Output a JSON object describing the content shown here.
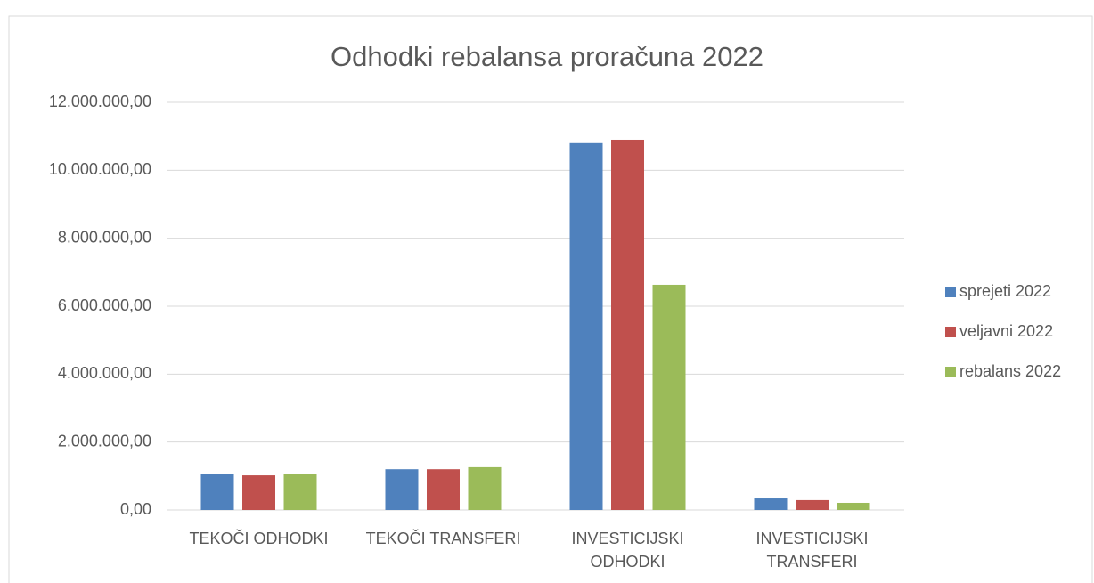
{
  "chart_data": {
    "type": "bar",
    "title": "Odhodki rebalansa proračuna 2022",
    "categories": [
      "TEKOČI ODHODKI",
      "TEKOČI TRANSFERI",
      "INVESTICIJSKI ODHODKI",
      "INVESTICIJSKI TRANSFERI"
    ],
    "series": [
      {
        "name": "sprejeti 2022",
        "color": "#4f81bd",
        "values": [
          1050000,
          1200000,
          10800000,
          340000
        ]
      },
      {
        "name": "veljavni 2022",
        "color": "#c0504d",
        "values": [
          1020000,
          1200000,
          10900000,
          290000
        ]
      },
      {
        "name": "rebalans 2022",
        "color": "#9bbb59",
        "values": [
          1050000,
          1260000,
          6630000,
          210000
        ]
      }
    ],
    "ylim": [
      0,
      12000000
    ],
    "yticks": [
      {
        "value": 0,
        "label": "0,00"
      },
      {
        "value": 2000000,
        "label": "2.000.000,00"
      },
      {
        "value": 4000000,
        "label": "4.000.000,00"
      },
      {
        "value": 6000000,
        "label": "6.000.000,00"
      },
      {
        "value": 8000000,
        "label": "8.000.000,00"
      },
      {
        "value": 10000000,
        "label": "10.000.000,00"
      },
      {
        "value": 12000000,
        "label": "12.000.000,00"
      }
    ],
    "grid": true,
    "legend": "right"
  }
}
